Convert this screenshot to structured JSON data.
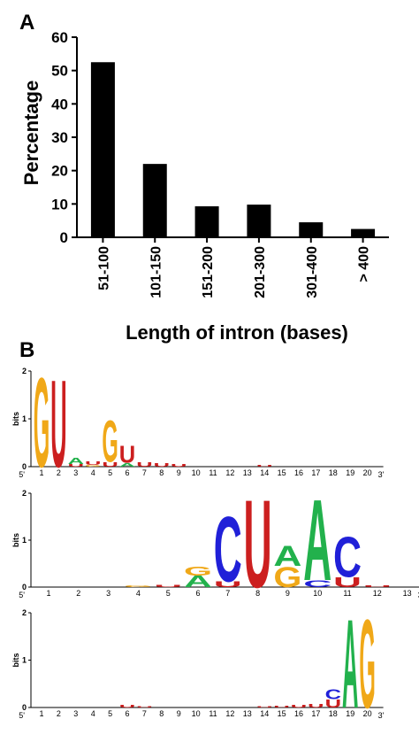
{
  "chart_data": [
    {
      "panel": "A",
      "type": "bar",
      "categories": [
        "51-100",
        "101-150",
        "151-200",
        "201-300",
        "301-400",
        "> 400"
      ],
      "values": [
        52.5,
        22,
        9.3,
        9.8,
        4.5,
        2.5
      ],
      "xlabel": "Length of intron (bases)",
      "ylabel": "Percentage",
      "ylim": [
        0,
        60
      ],
      "yticks": [
        0,
        10,
        20,
        30,
        40,
        50,
        60
      ],
      "color": "#000000",
      "grid": false
    },
    {
      "panel": "B",
      "type": "sequence-logo",
      "ylabel": "bits",
      "ylim": [
        0,
        2
      ],
      "yticks": [
        0,
        1,
        2
      ],
      "end_labels": [
        "5'",
        "3'"
      ],
      "colors": {
        "A": "#22b14c",
        "C": "#2020d8",
        "G": "#f0a818",
        "U": "#cc1f1f"
      },
      "logos": [
        {
          "positions": [
            "1",
            "2",
            "3",
            "4",
            "5",
            "6",
            "7",
            "8",
            "9",
            "10",
            "11",
            "12",
            "13",
            "14",
            "15",
            "16",
            "17",
            "18",
            "19",
            "20"
          ],
          "stacks": [
            [
              {
                "l": "G",
                "h": 1.95
              }
            ],
            [
              {
                "l": "U",
                "h": 1.9
              }
            ],
            [
              {
                "l": "U",
                "h": 0.06
              },
              {
                "l": "A",
                "h": 0.14
              }
            ],
            [
              {
                "l": "G",
                "h": 0.04
              },
              {
                "l": "U",
                "h": 0.08
              }
            ],
            [
              {
                "l": "U",
                "h": 0.1
              },
              {
                "l": "G",
                "h": 0.9
              }
            ],
            [
              {
                "l": "A",
                "h": 0.08
              },
              {
                "l": "U",
                "h": 0.38
              }
            ],
            [
              {
                "l": "U",
                "h": 0.1
              }
            ],
            [
              {
                "l": "U",
                "h": 0.08
              }
            ],
            [
              {
                "l": "U",
                "h": 0.06
              }
            ],
            [],
            [],
            [],
            [],
            [
              {
                "l": "U",
                "h": 0.03
              }
            ],
            [],
            [],
            [],
            [],
            [],
            []
          ]
        },
        {
          "positions": [
            "1",
            "2",
            "3",
            "4",
            "5",
            "6",
            "7",
            "8",
            "9",
            "10",
            "11",
            "12",
            "13"
          ],
          "stacks": [
            [],
            [],
            [],
            [
              {
                "l": "G",
                "h": 0.04
              }
            ],
            [
              {
                "l": "U",
                "h": 0.05
              }
            ],
            [
              {
                "l": "A",
                "h": 0.25
              },
              {
                "l": "G",
                "h": 0.2
              }
            ],
            [
              {
                "l": "U",
                "h": 0.12
              },
              {
                "l": "C",
                "h": 1.45
              }
            ],
            [
              {
                "l": "U",
                "h": 1.95
              }
            ],
            [
              {
                "l": "G",
                "h": 0.45
              },
              {
                "l": "A",
                "h": 0.45
              }
            ],
            [
              {
                "l": "C",
                "h": 0.15
              },
              {
                "l": "A",
                "h": 1.8
              }
            ],
            [
              {
                "l": "U",
                "h": 0.22
              },
              {
                "l": "C",
                "h": 0.9
              }
            ],
            [
              {
                "l": "U",
                "h": 0.04
              }
            ],
            []
          ]
        },
        {
          "positions": [
            "1",
            "2",
            "3",
            "4",
            "5",
            "6",
            "7",
            "8",
            "9",
            "10",
            "11",
            "12",
            "13",
            "14",
            "15",
            "16",
            "17",
            "18",
            "19",
            "20"
          ],
          "stacks": [
            [],
            [],
            [],
            [],
            [],
            [
              {
                "l": "U",
                "h": 0.06
              }
            ],
            [
              {
                "l": "U",
                "h": 0.03
              }
            ],
            [],
            [],
            [],
            [],
            [],
            [],
            [
              {
                "l": "U",
                "h": 0.03
              }
            ],
            [
              {
                "l": "U",
                "h": 0.04
              }
            ],
            [
              {
                "l": "U",
                "h": 0.06
              }
            ],
            [
              {
                "l": "U",
                "h": 0.08
              }
            ],
            [
              {
                "l": "U",
                "h": 0.18
              },
              {
                "l": "C",
                "h": 0.22
              }
            ],
            [
              {
                "l": "A",
                "h": 1.95
              }
            ],
            [
              {
                "l": "G",
                "h": 1.95
              }
            ]
          ]
        }
      ]
    }
  ],
  "labels": {
    "panel_a": "A",
    "panel_b": "B"
  }
}
